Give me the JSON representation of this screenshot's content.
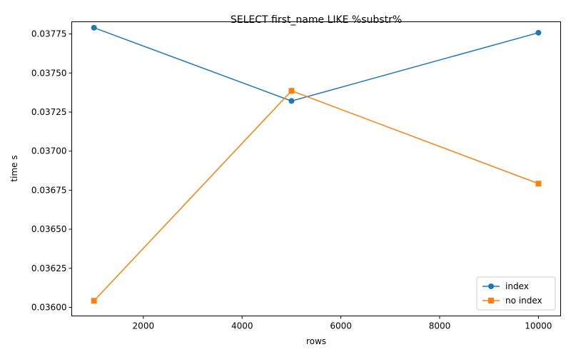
{
  "chart_data": {
    "type": "line",
    "title": "SELECT first_name LIKE %substr%",
    "xlabel": "rows",
    "ylabel": "time s",
    "x": [
      1000,
      5000,
      10000
    ],
    "xlim": [
      550,
      10450
    ],
    "ylim": [
      0.035945,
      0.037828
    ],
    "xticks": [
      2000,
      4000,
      6000,
      8000,
      10000
    ],
    "yticks": [
      0.036,
      0.03625,
      0.0365,
      0.03675,
      0.037,
      0.03725,
      0.0375,
      0.03775
    ],
    "ytick_labels": [
      "0.03600",
      "0.03625",
      "0.03650",
      "0.03675",
      "0.03700",
      "0.03725",
      "0.03750",
      "0.03775"
    ],
    "grid": false,
    "legend_position": "lower-right",
    "series": [
      {
        "name": "index",
        "values": [
          0.03779,
          0.037321,
          0.037758
        ],
        "color": "#1f77b4",
        "marker": "circle"
      },
      {
        "name": "no index",
        "values": [
          0.036042,
          0.037386,
          0.036792
        ],
        "color": "#ff7f0e",
        "marker": "square"
      }
    ]
  }
}
